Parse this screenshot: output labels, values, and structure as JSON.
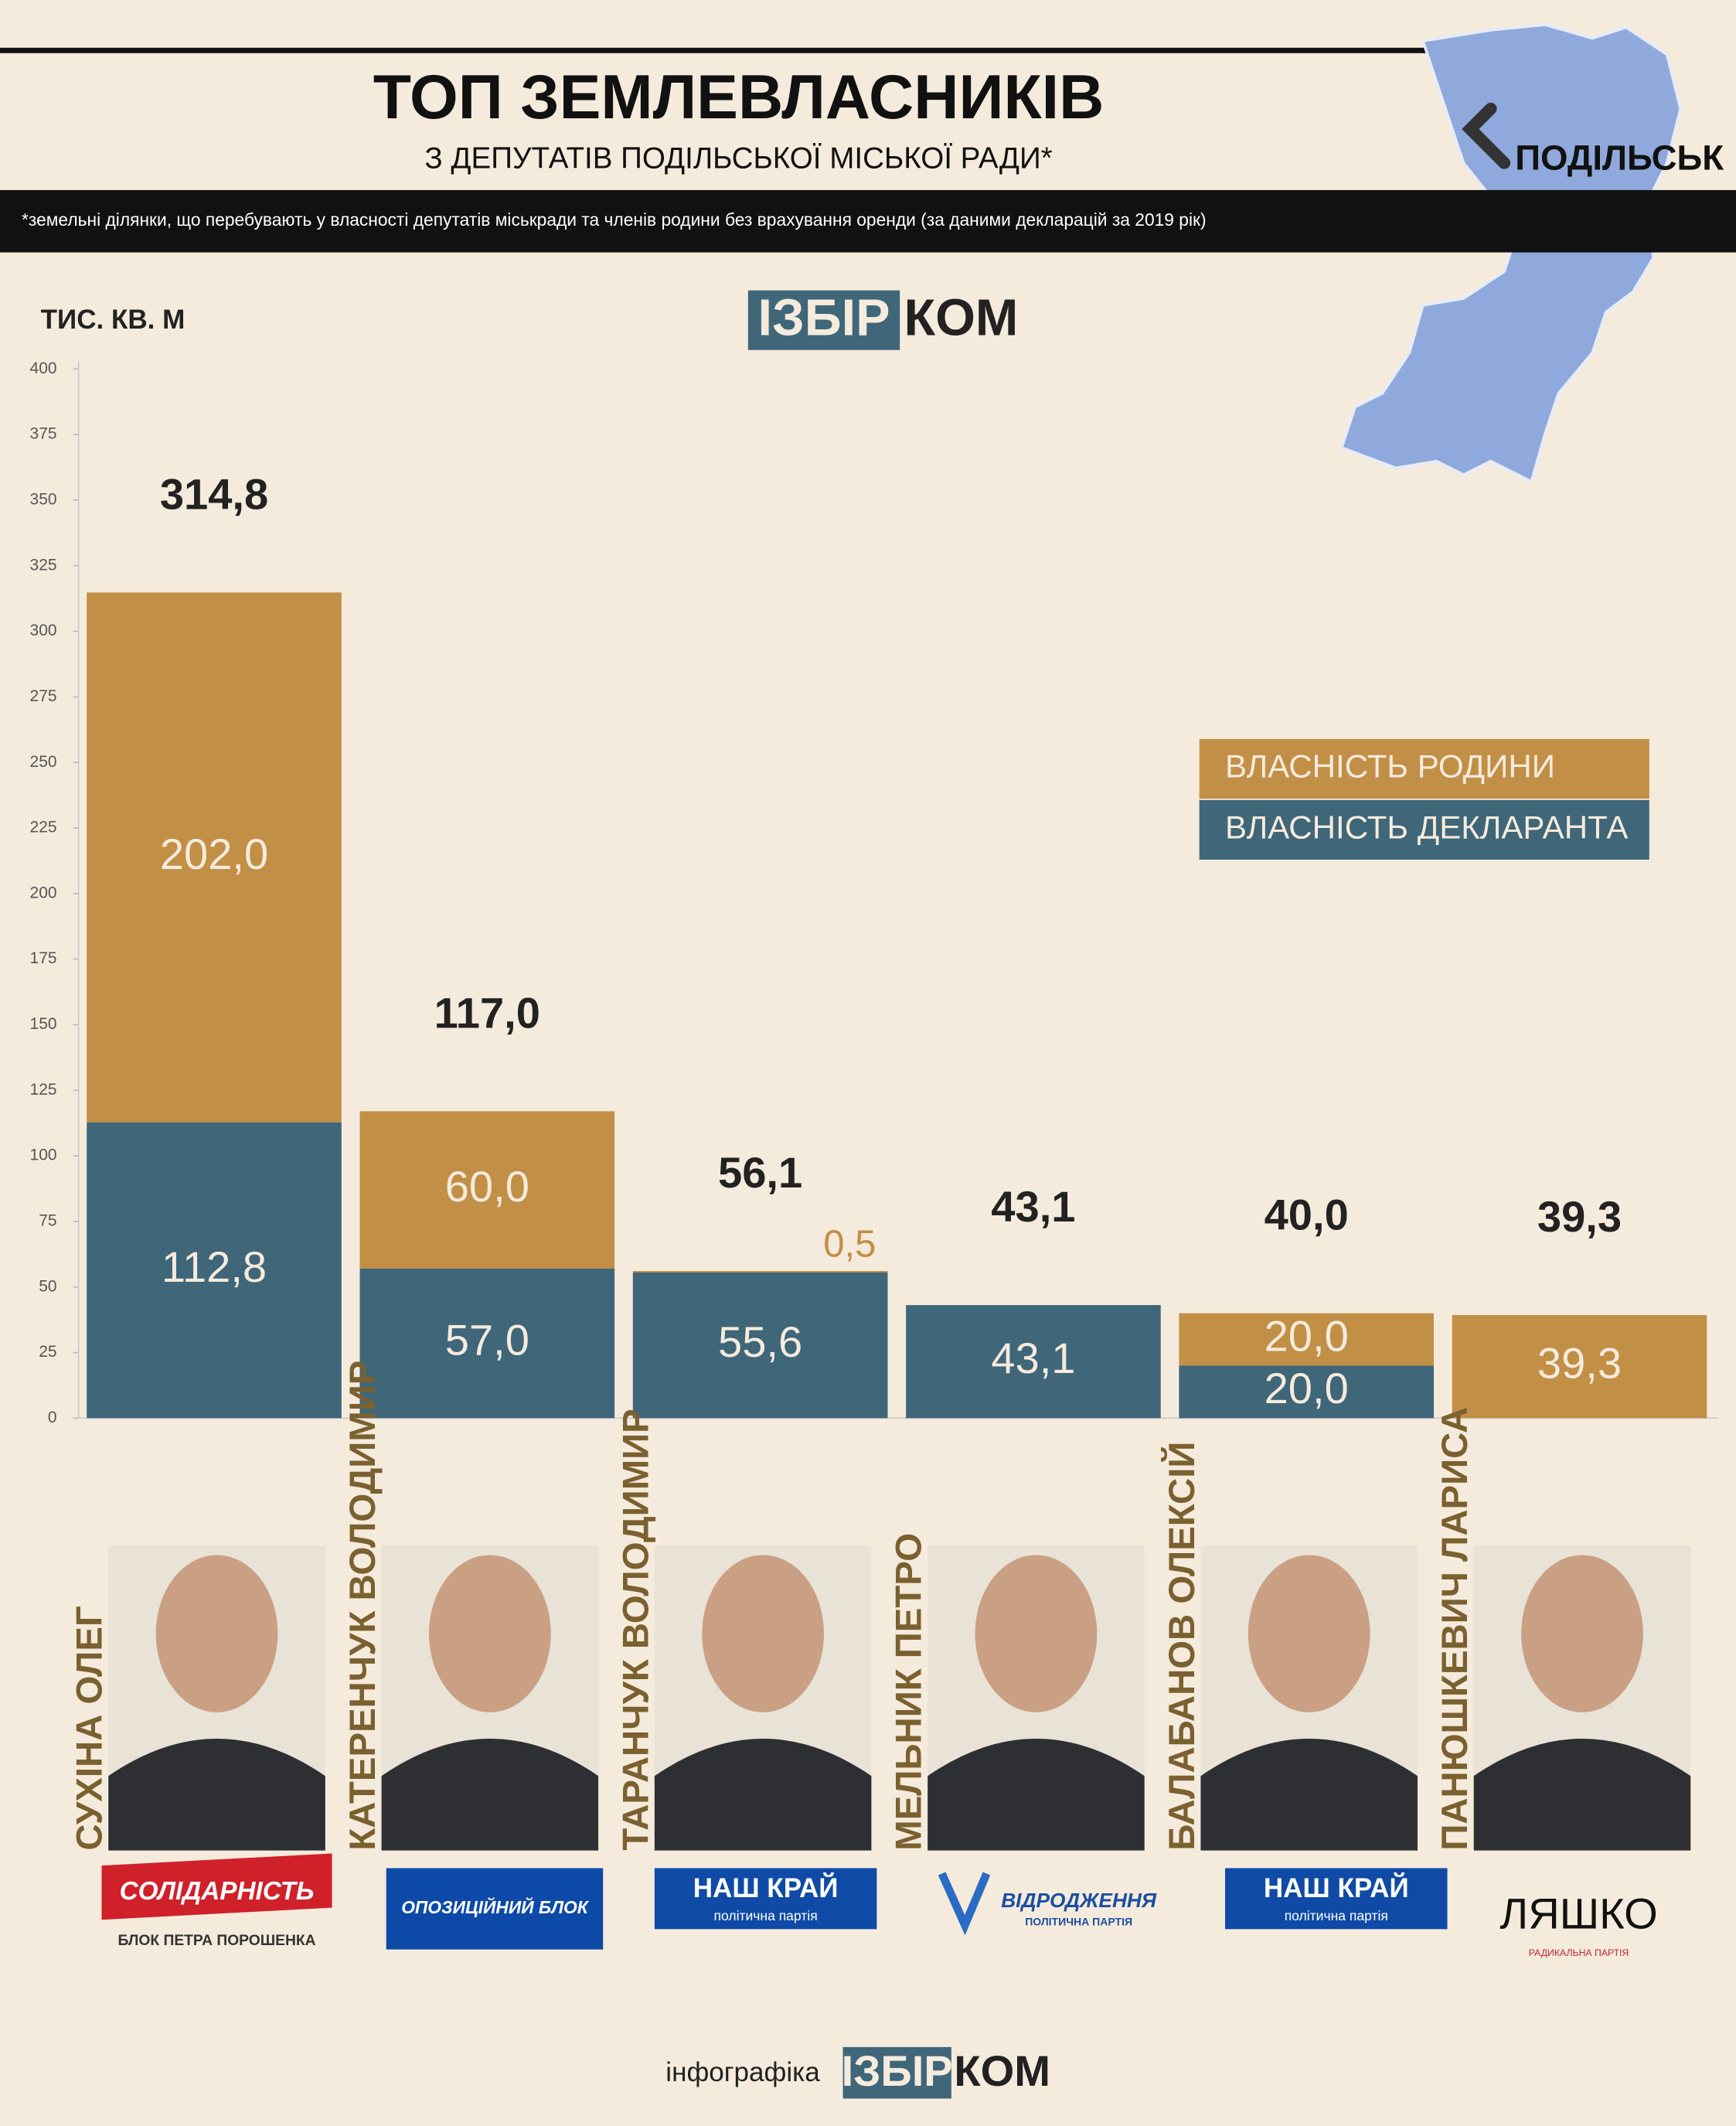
{
  "chart_data": {
    "type": "stacked-bar",
    "title": "ТОП ЗЕМЛЕВЛАСНИКІВ",
    "subtitle": "З ДЕПУТАТІВ ПОДІЛЬСЬКОЇ МІСЬКОЇ РАДИ*",
    "note": "*земельні ділянки, що перебувають у власності депутатів міськради та членів родини без врахування оренди (за даними декларацій за 2019 рік)",
    "y_label": "ТИС. КВ. М",
    "categories": [
      "СУХІНА ОЛЕГ",
      "КАТЕРЕНЧУК ВОЛОДИМИР",
      "ТАРАНЧУК ВОЛОДИМИР",
      "МЕЛЬНИК ПЕТРО",
      "БАЛАБАНОВ ОЛЕКСІЙ",
      "ПАНЮШКЕВИЧ ЛАРИСА"
    ],
    "series": [
      {
        "name": "ВЛАСНІСТЬ ДЕКЛАРАНТА",
        "color": "#3f6679",
        "values": [
          112.8,
          57.0,
          55.6,
          43.1,
          20.0,
          0
        ],
        "value_labels": [
          "112,8",
          "57,0",
          "55,6",
          "43,1",
          "20,0",
          null
        ]
      },
      {
        "name": "ВЛАСНІСТЬ РОДИНИ",
        "color": "#c28f47",
        "values": [
          202.0,
          60.0,
          0.5,
          0,
          20.0,
          39.3
        ],
        "value_labels": [
          "202,0",
          "60,0",
          "0,5",
          null,
          "20,0",
          "39,3"
        ]
      }
    ],
    "totals": {
      "values": [
        314.8,
        117.0,
        56.1,
        43.1,
        40.0,
        39.3
      ],
      "value_labels": [
        "314,8",
        "117,0",
        "56,1",
        "43,1",
        "40,0",
        "39,3"
      ]
    },
    "ylim": [
      0,
      400
    ],
    "yticks": [
      0,
      25,
      50,
      75,
      100,
      125,
      150,
      175,
      200,
      225,
      250,
      275,
      300,
      325,
      350,
      375,
      400
    ]
  },
  "branding": {
    "logo_left": "ІЗБІР",
    "logo_right": "КОМ",
    "footer": "інфографіка",
    "map_label": "ПОДІЛЬСЬК"
  },
  "parties": [
    {
      "name": "СОЛІДАРНІСТЬ",
      "sub": "БЛОК ПЕТРА ПОРОШЕНКА"
    },
    {
      "name": "ОПОЗИЦІЙНИЙ БЛОК"
    },
    {
      "name": "НАШ КРАЙ",
      "sub": "політична партія"
    },
    {
      "name": "ВІДРОДЖЕННЯ",
      "sub": "ПОЛІТИЧНА ПАРТІЯ"
    },
    {
      "name": "НАШ КРАЙ",
      "sub": "політична партія"
    },
    {
      "name": "ЛЯШКО",
      "sub": "РАДИКАЛЬНА ПАРТІЯ"
    }
  ]
}
